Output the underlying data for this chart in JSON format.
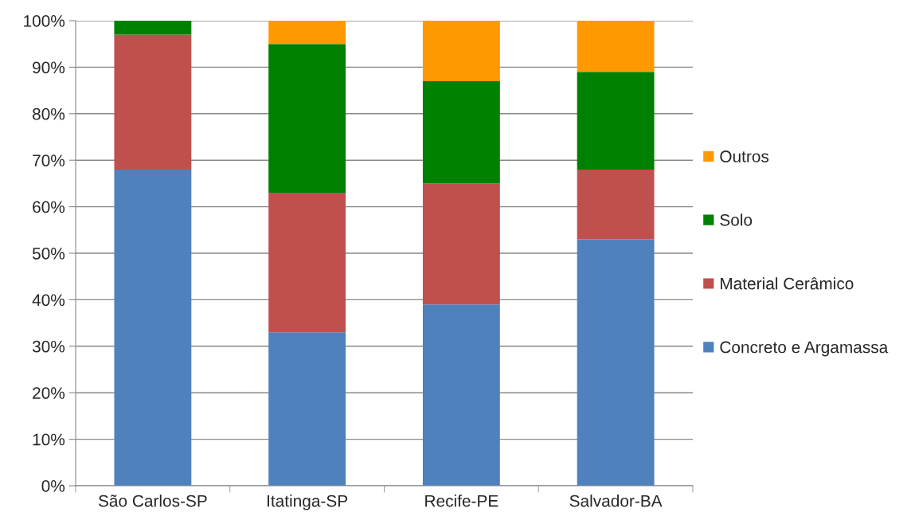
{
  "chart_data": {
    "type": "bar",
    "stacked": true,
    "categories": [
      "São Carlos-SP",
      "Itatinga-SP",
      "Recife-PE",
      "Salvador-BA"
    ],
    "series": [
      {
        "name": "Concreto e Argamassa",
        "color": "#4f81bd",
        "values": [
          68,
          33,
          39,
          53
        ]
      },
      {
        "name": "Material Cerâmico",
        "color": "#c0504d",
        "values": [
          29,
          30,
          26,
          15
        ]
      },
      {
        "name": "Solo",
        "color": "#008000",
        "values": [
          3,
          32,
          22,
          21
        ]
      },
      {
        "name": "Outros",
        "color": "#ff9900",
        "values": [
          0,
          5,
          13,
          11
        ]
      }
    ],
    "ylim": [
      0,
      100
    ],
    "yticks": [
      {
        "value": 0,
        "label": "0%"
      },
      {
        "value": 10,
        "label": "10%"
      },
      {
        "value": 20,
        "label": "20%"
      },
      {
        "value": 30,
        "label": "30%"
      },
      {
        "value": 40,
        "label": "40%"
      },
      {
        "value": 50,
        "label": "50%"
      },
      {
        "value": 60,
        "label": "60%"
      },
      {
        "value": 70,
        "label": "70%"
      },
      {
        "value": 80,
        "label": "80%"
      },
      {
        "value": 90,
        "label": "90%"
      },
      {
        "value": 100,
        "label": "100%"
      }
    ],
    "grid": "y",
    "legend": "right"
  }
}
